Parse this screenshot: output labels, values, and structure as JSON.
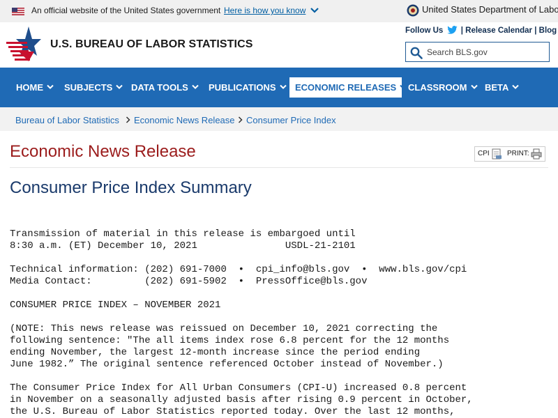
{
  "gov_banner": {
    "official_text": "An official website of the United States government",
    "how_link": "Here is how you know",
    "department": "United States Department of Labor"
  },
  "header": {
    "site_title": "U.S. BUREAU OF LABOR STATISTICS",
    "follow_us": "Follow Us",
    "release_calendar": "Release Calendar",
    "blog": "Blog",
    "separator": "|",
    "search_placeholder": "Search BLS.gov"
  },
  "nav": {
    "items": [
      {
        "label": "HOME"
      },
      {
        "label": "SUBJECTS"
      },
      {
        "label": "DATA TOOLS"
      },
      {
        "label": "PUBLICATIONS"
      },
      {
        "label": "ECONOMIC RELEASES",
        "active": true
      },
      {
        "label": "CLASSROOM"
      },
      {
        "label": "BETA"
      }
    ]
  },
  "breadcrumb": [
    {
      "label": "Bureau of Labor Statistics"
    },
    {
      "label": "Economic News Release"
    },
    {
      "label": "Consumer Price Index"
    }
  ],
  "content": {
    "section_title": "Economic News Release",
    "tools": {
      "cpi_label": "CPI",
      "print_label": "PRINT:"
    },
    "page_title": "Consumer Price Index Summary",
    "release_text": "Transmission of material in this release is embargoed until\n8:30 a.m. (ET) December 10, 2021               USDL-21-2101\n\nTechnical information: (202) 691-7000  •  cpi_info@bls.gov  •  www.bls.gov/cpi\nMedia Contact:         (202) 691-5902  •  PressOffice@bls.gov\n\nCONSUMER PRICE INDEX – NOVEMBER 2021\n\n(NOTE: This news release was reissued on December 10, 2021 correcting the\nfollowing sentence: \"The all items index rose 6.8 percent for the 12 months\nending November, the largest 12-month increase since the period ending\nJune 1982.” The original sentence referenced October instead of November.)\n\nThe Consumer Price Index for All Urban Consumers (CPI-U) increased 0.8 percent\nin November on a seasonally adjusted basis after rising 0.9 percent in October,\nthe U.S. Bureau of Labor Statistics reported today. Over the last 12 months,"
  },
  "colors": {
    "nav_blue": "#1f6ab5",
    "title_red": "#9b1c1c",
    "heading_navy": "#1a3a6b",
    "link_blue": "#005ea2"
  },
  "icons": [
    "us-flag-icon",
    "chevron-down-icon",
    "dol-seal-icon",
    "bls-star-logo",
    "twitter-icon",
    "search-icon",
    "chevron-right-icon",
    "document-icon",
    "printer-icon"
  ]
}
